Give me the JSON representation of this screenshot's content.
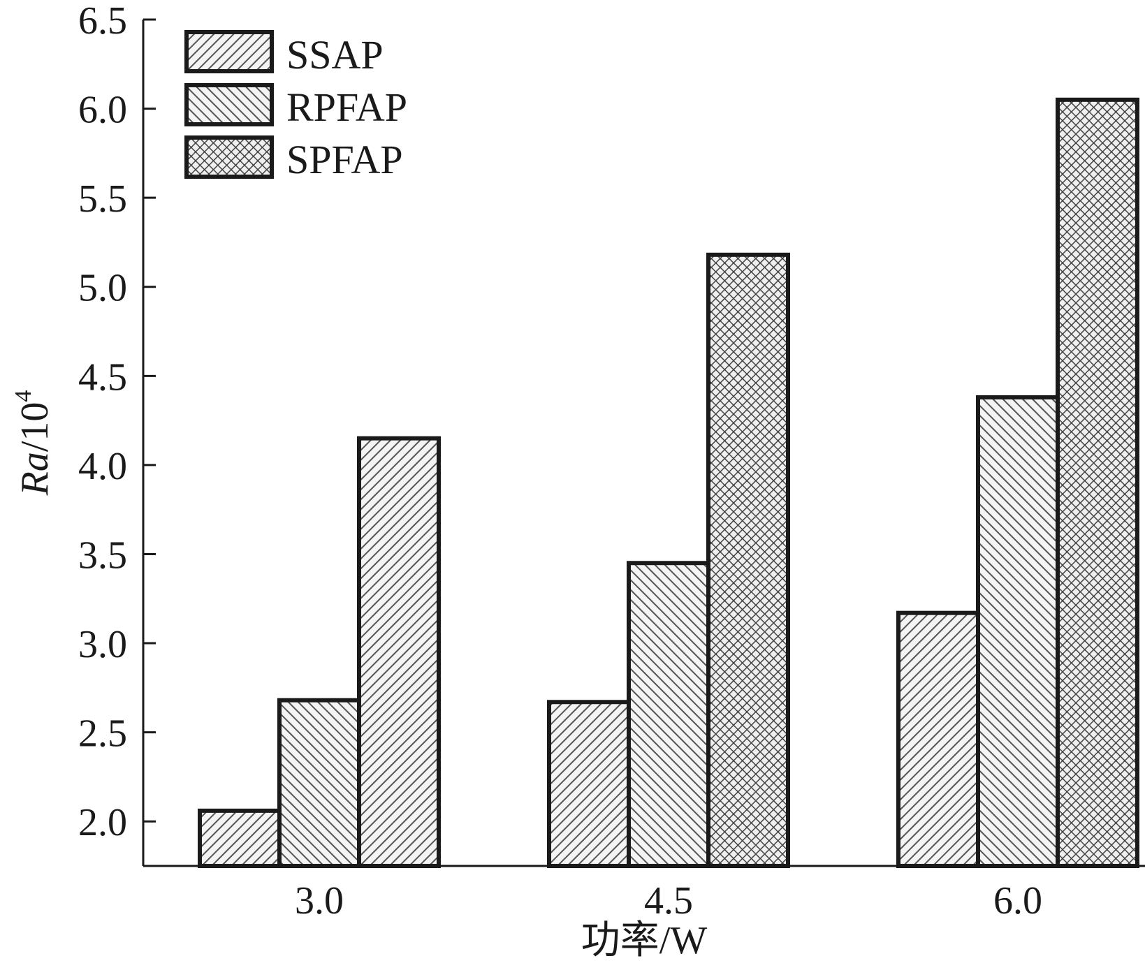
{
  "chart_data": {
    "type": "bar",
    "categories": [
      "3.0",
      "4.5",
      "6.0"
    ],
    "xlabel": "功率/W",
    "ylabel": {
      "main": "Ra",
      "unit": "/10",
      "exponent": "4"
    },
    "ylim": [
      1.75,
      6.5
    ],
    "yticks": [
      "2.0",
      "2.5",
      "3.0",
      "3.5",
      "4.0",
      "4.5",
      "5.0",
      "5.5",
      "6.0",
      "6.5"
    ],
    "series": [
      {
        "name": "SSAP",
        "pattern": "diagonal-right",
        "values": [
          2.06,
          2.67,
          3.17
        ]
      },
      {
        "name": "RPFAP",
        "pattern": "diagonal-left",
        "values": [
          2.68,
          3.45,
          4.38
        ]
      },
      {
        "name": "SPFAP",
        "pattern": "crosshatch",
        "values": [
          null,
          5.18,
          6.05
        ]
      }
    ],
    "extra_bars": [
      {
        "category": "3.0",
        "pattern": "diagonal-right",
        "value": 4.15
      }
    ],
    "legend_position": "top-left",
    "grid": false,
    "colors": {
      "stroke": "#1a1a1a",
      "hatch": "#555555",
      "background": "#ffffff"
    }
  }
}
